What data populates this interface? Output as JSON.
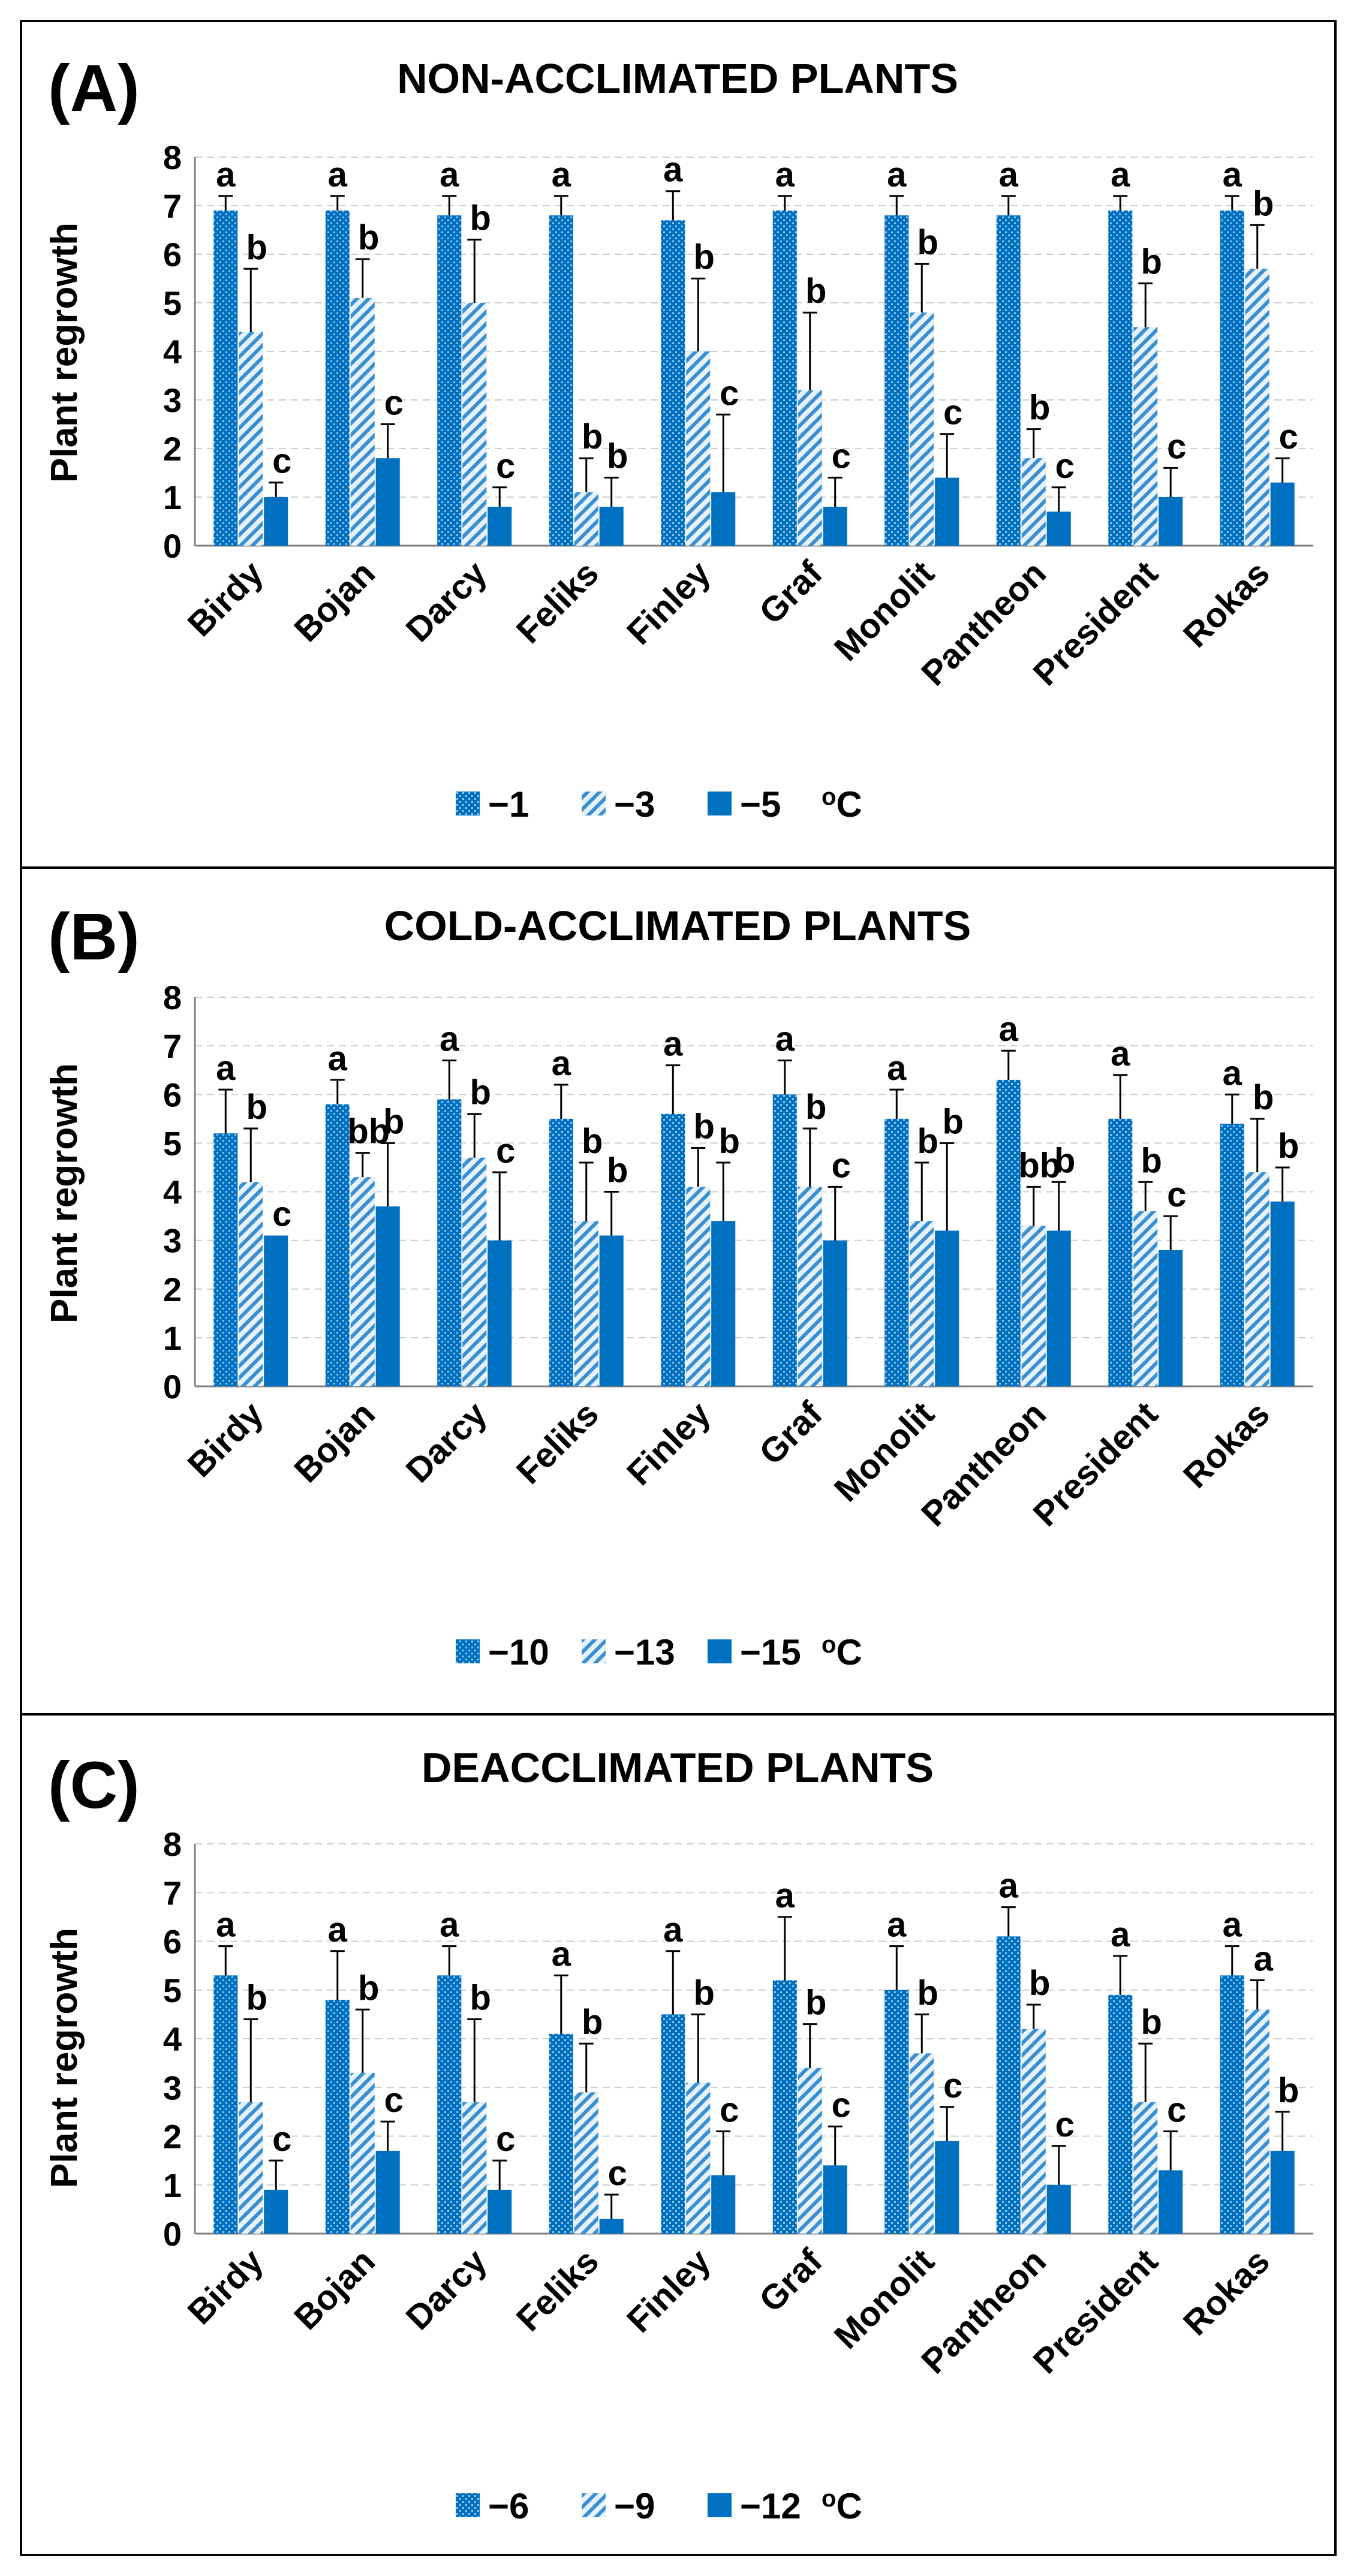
{
  "figure": {
    "unit_label": "oC",
    "colors": {
      "bar": "#0070C0",
      "bar_light": "#8FC3EA",
      "border": "#000000",
      "grid": "#CFCFCF"
    }
  },
  "chart_data": [
    {
      "type": "bar",
      "panel_label": "(A)",
      "title": "NON-ACCLIMATED PLANTS",
      "xlabel": "",
      "ylabel": "Plant regrowth",
      "ylim": [
        0,
        8
      ],
      "yticks": [
        "0",
        "1",
        "2",
        "3",
        "4",
        "5",
        "6",
        "7",
        "8"
      ],
      "categories": [
        "Birdy",
        "Bojan",
        "Darcy",
        "Feliks",
        "Finley",
        "Graf",
        "Monolit",
        "Pantheon",
        "President",
        "Rokas"
      ],
      "legend_suffix": "oC",
      "series": [
        {
          "name": "−1",
          "pattern": "dots",
          "values": [
            6.9,
            6.9,
            6.8,
            6.8,
            6.7,
            6.9,
            6.8,
            6.8,
            6.9,
            6.9
          ],
          "errors": [
            0.3,
            0.3,
            0.4,
            0.4,
            0.6,
            0.3,
            0.4,
            0.4,
            0.3,
            0.3
          ],
          "letters": [
            "a",
            "a",
            "a",
            "a",
            "a",
            "a",
            "a",
            "a",
            "a",
            "a"
          ]
        },
        {
          "name": "−3",
          "pattern": "stripes",
          "values": [
            4.4,
            5.1,
            5.0,
            1.1,
            4.0,
            3.2,
            4.8,
            1.8,
            4.5,
            5.7
          ],
          "errors": [
            1.3,
            0.8,
            1.3,
            0.7,
            1.5,
            1.6,
            1.0,
            0.6,
            0.9,
            0.9
          ],
          "letters": [
            "b",
            "b",
            "b",
            "b",
            "b",
            "b",
            "b",
            "b",
            "b",
            "b"
          ]
        },
        {
          "name": "−5",
          "pattern": "solid",
          "values": [
            1.0,
            1.8,
            0.8,
            0.8,
            1.1,
            0.8,
            1.4,
            0.7,
            1.0,
            1.3
          ],
          "errors": [
            0.3,
            0.7,
            0.4,
            0.6,
            1.6,
            0.6,
            0.9,
            0.5,
            0.6,
            0.5
          ],
          "letters": [
            "c",
            "c",
            "c",
            "b",
            "c",
            "c",
            "c",
            "c",
            "c",
            "c"
          ]
        }
      ]
    },
    {
      "type": "bar",
      "panel_label": "(B)",
      "title": "COLD-ACCLIMATED PLANTS",
      "xlabel": "",
      "ylabel": "Plant regrowth",
      "ylim": [
        0,
        8
      ],
      "yticks": [
        "0",
        "1",
        "2",
        "3",
        "4",
        "5",
        "6",
        "7",
        "8"
      ],
      "categories": [
        "Birdy",
        "Bojan",
        "Darcy",
        "Feliks",
        "Finley",
        "Graf",
        "Monolit",
        "Pantheon",
        "President",
        "Rokas"
      ],
      "legend_suffix": "oC",
      "series": [
        {
          "name": "−10",
          "pattern": "dots",
          "values": [
            5.2,
            5.8,
            5.9,
            5.5,
            5.6,
            6.0,
            5.5,
            6.3,
            5.5,
            5.4
          ],
          "errors": [
            0.9,
            0.5,
            0.8,
            0.7,
            1.0,
            0.7,
            0.6,
            0.6,
            0.9,
            0.6
          ],
          "letters": [
            "a",
            "a",
            "a",
            "a",
            "a",
            "a",
            "a",
            "a",
            "a",
            "a"
          ]
        },
        {
          "name": "−13",
          "pattern": "stripes",
          "values": [
            4.2,
            4.3,
            4.7,
            3.4,
            4.1,
            4.1,
            3.4,
            3.3,
            3.6,
            4.4
          ],
          "errors": [
            1.1,
            0.5,
            0.9,
            1.2,
            0.8,
            1.2,
            1.2,
            0.8,
            0.6,
            1.1
          ],
          "letters": [
            "b",
            "bb",
            "b",
            "b",
            "b",
            "b",
            "b",
            "bb",
            "b",
            "b"
          ]
        },
        {
          "name": "−15",
          "pattern": "solid",
          "values": [
            3.1,
            3.7,
            3.0,
            3.1,
            3.4,
            3.0,
            3.2,
            3.2,
            2.8,
            3.8
          ],
          "errors": [
            0.0,
            1.3,
            1.4,
            0.9,
            1.2,
            1.1,
            1.8,
            1.0,
            0.7,
            0.7
          ],
          "letters": [
            "c",
            "b",
            "c",
            "b",
            "b",
            "c",
            "b",
            "b",
            "c",
            "b"
          ]
        }
      ]
    },
    {
      "type": "bar",
      "panel_label": "(C)",
      "title": "DEACCLIMATED PLANTS",
      "xlabel": "",
      "ylabel": "Plant regrowth",
      "ylim": [
        0,
        8
      ],
      "yticks": [
        "0",
        "1",
        "2",
        "3",
        "4",
        "5",
        "6",
        "7",
        "8"
      ],
      "categories": [
        "Birdy",
        "Bojan",
        "Darcy",
        "Feliks",
        "Finley",
        "Graf",
        "Monolit",
        "Pantheon",
        "President",
        "Rokas"
      ],
      "legend_suffix": "oC",
      "series": [
        {
          "name": "−6",
          "pattern": "dots",
          "values": [
            5.3,
            4.8,
            5.3,
            4.1,
            4.5,
            5.2,
            5.0,
            6.1,
            4.9,
            5.3
          ],
          "errors": [
            0.6,
            1.0,
            0.6,
            1.2,
            1.3,
            1.3,
            0.9,
            0.6,
            0.8,
            0.6
          ],
          "letters": [
            "a",
            "a",
            "a",
            "a",
            "a",
            "a",
            "a",
            "a",
            "a",
            "a"
          ]
        },
        {
          "name": "−9",
          "pattern": "stripes",
          "values": [
            2.7,
            3.3,
            2.7,
            2.9,
            3.1,
            3.4,
            3.7,
            4.2,
            2.7,
            4.6
          ],
          "errors": [
            1.7,
            1.3,
            1.7,
            1.0,
            1.4,
            0.9,
            0.8,
            0.5,
            1.2,
            0.6
          ],
          "letters": [
            "b",
            "b",
            "b",
            "b",
            "b",
            "b",
            "b",
            "b",
            "b",
            "a"
          ]
        },
        {
          "name": "−12",
          "pattern": "solid",
          "values": [
            0.9,
            1.7,
            0.9,
            0.3,
            1.2,
            1.4,
            1.9,
            1.0,
            1.3,
            1.7
          ],
          "errors": [
            0.6,
            0.6,
            0.6,
            0.5,
            0.9,
            0.8,
            0.7,
            0.8,
            0.8,
            0.8
          ],
          "letters": [
            "c",
            "c",
            "c",
            "c",
            "c",
            "c",
            "c",
            "c",
            "c",
            "b"
          ]
        }
      ]
    }
  ]
}
